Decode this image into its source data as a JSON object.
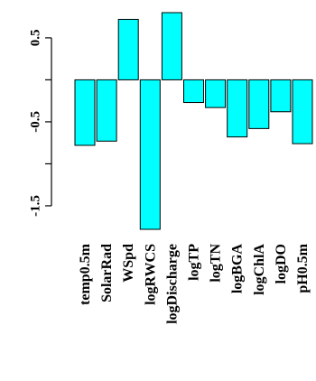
{
  "chart_data": {
    "type": "bar",
    "title": "",
    "xlabel": "",
    "ylabel": "",
    "categories": [
      "temp0.5m",
      "SolarRad",
      "WSpd",
      "logRWCS",
      "logDischarge",
      "logTP",
      "logTN",
      "logBGA",
      "logChlA",
      "logDO",
      "pH0.5m"
    ],
    "values": [
      -0.78,
      -0.73,
      0.72,
      -1.78,
      0.8,
      -0.27,
      -0.33,
      -0.68,
      -0.58,
      -0.38,
      -0.76
    ],
    "ylim": [
      -1.78,
      0.8
    ],
    "y_ticks": [
      0.5,
      -0.5,
      -1.5
    ],
    "y_tick_labels": [
      "0.5",
      "-0.5",
      "-1.5"
    ],
    "bar_color": "#00FFFF",
    "bar_edge_color": "#000000",
    "grid": false,
    "legend": "none"
  }
}
